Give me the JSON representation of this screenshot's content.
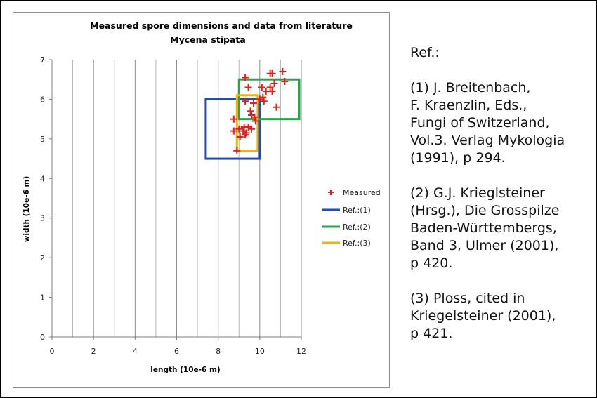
{
  "chart_data": {
    "type": "scatter",
    "title": "Measured spore dimensions and data from literature",
    "subtitle": "Mycena stipata",
    "xlabel": "length (10e-6 m)",
    "ylabel": "width (10e-6 m)",
    "xlim": [
      0,
      12
    ],
    "ylim": [
      0,
      7
    ],
    "x_ticks": [
      "0",
      "2",
      "4",
      "6",
      "8",
      "10",
      "12"
    ],
    "y_ticks": [
      "0",
      "1",
      "2",
      "3",
      "4",
      "5",
      "6",
      "7"
    ],
    "grid": "vertical major gridlines",
    "legend_position": "right",
    "colors": {
      "measured": "#e0201b",
      "ref1": "#1f4db5",
      "ref2": "#27a34a",
      "ref3": "#f2b400",
      "grid": "#8c8c8c"
    },
    "series": [
      {
        "name": "Measured",
        "type": "scatter",
        "marker": "plus",
        "points": [
          [
            9.3,
            6.55
          ],
          [
            10.5,
            6.65
          ],
          [
            10.6,
            6.65
          ],
          [
            11.1,
            6.7
          ],
          [
            11.2,
            6.45
          ],
          [
            9.45,
            6.3
          ],
          [
            10.1,
            6.3
          ],
          [
            10.5,
            6.3
          ],
          [
            10.6,
            6.2
          ],
          [
            10.3,
            6.2
          ],
          [
            10.7,
            6.4
          ],
          [
            10.15,
            6.05
          ],
          [
            10.0,
            6.0
          ],
          [
            10.2,
            5.95
          ],
          [
            9.3,
            5.95
          ],
          [
            9.7,
            5.9
          ],
          [
            10.8,
            5.8
          ],
          [
            9.55,
            5.7
          ],
          [
            9.6,
            5.6
          ],
          [
            9.75,
            5.55
          ],
          [
            8.75,
            5.5
          ],
          [
            9.8,
            5.45
          ],
          [
            9.25,
            5.3
          ],
          [
            9.45,
            5.3
          ],
          [
            9.0,
            5.25
          ],
          [
            9.6,
            5.25
          ],
          [
            8.75,
            5.2
          ],
          [
            9.2,
            5.2
          ],
          [
            9.35,
            5.15
          ],
          [
            9.3,
            5.1
          ],
          [
            9.05,
            5.05
          ],
          [
            8.9,
            4.7
          ]
        ]
      },
      {
        "name": "Ref.:(1)",
        "type": "box",
        "x": [
          7.4,
          10.0
        ],
        "y": [
          4.5,
          6.0
        ]
      },
      {
        "name": "Ref.:(2)",
        "type": "box",
        "x": [
          9.0,
          11.9
        ],
        "y": [
          5.5,
          6.5
        ]
      },
      {
        "name": "Ref.:(3)",
        "type": "box",
        "x": [
          8.9,
          9.9
        ],
        "y": [
          4.7,
          6.1
        ]
      }
    ]
  },
  "references": {
    "heading": "Ref.:",
    "items": [
      "(1) J. Breitenbach,\nF. Kraenzlin, Eds.,\nFungi of Switzerland,\nVol.3. Verlag Mykologia\n(1991), p 294.",
      "(2) G.J. Krieglsteiner\n(Hrsg.), Die Grosspilze\nBaden-Württembergs,\nBand 3, Ulmer (2001),\np 420.",
      "(3) Ploss, cited in\nKriegelsteiner (2001),\np 421."
    ]
  }
}
